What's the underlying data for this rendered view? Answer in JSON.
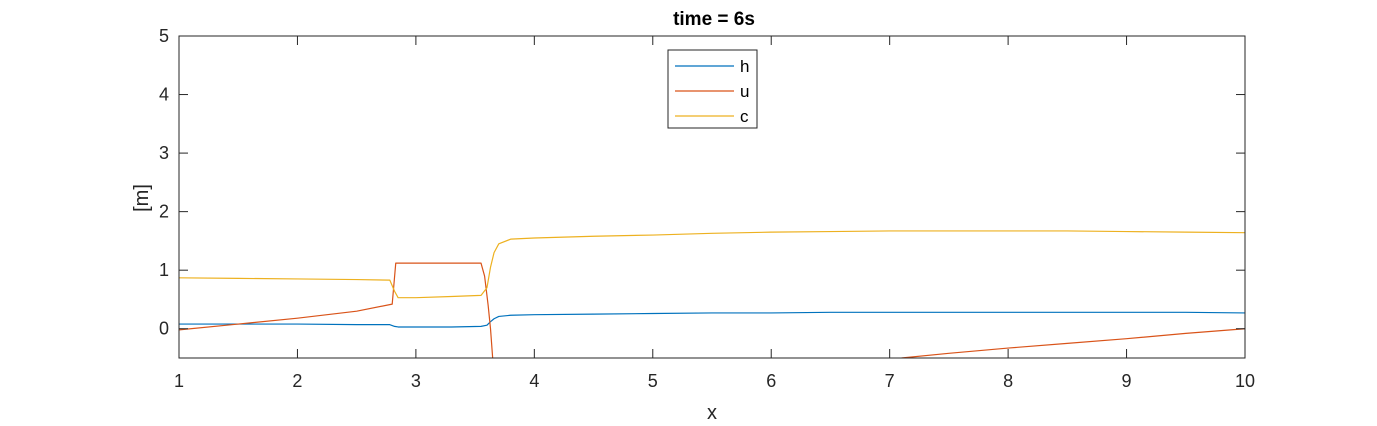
{
  "chart_data": {
    "type": "line",
    "title": "time = 6s",
    "xlabel": "x",
    "ylabel": "[m]",
    "xlim": [
      1,
      10
    ],
    "ylim": [
      -0.5,
      5
    ],
    "xticks": [
      1,
      2,
      3,
      4,
      5,
      6,
      7,
      8,
      9,
      10
    ],
    "yticks": [
      0,
      1,
      2,
      3,
      4,
      5
    ],
    "grid": false,
    "box": true,
    "legend_position": "top-center",
    "series": [
      {
        "name": "h",
        "color": "#0072BD",
        "x": [
          1.0,
          1.5,
          2.0,
          2.5,
          2.78,
          2.82,
          2.85,
          3.0,
          3.3,
          3.55,
          3.6,
          3.63,
          3.66,
          3.7,
          3.8,
          4.0,
          4.5,
          5.0,
          5.5,
          6.0,
          6.5,
          7.0,
          7.5,
          8.0,
          8.5,
          9.0,
          9.5,
          10.0
        ],
        "y": [
          0.08,
          0.08,
          0.08,
          0.07,
          0.07,
          0.04,
          0.03,
          0.03,
          0.03,
          0.04,
          0.06,
          0.12,
          0.17,
          0.21,
          0.23,
          0.24,
          0.25,
          0.26,
          0.27,
          0.27,
          0.28,
          0.28,
          0.28,
          0.28,
          0.28,
          0.28,
          0.28,
          0.27
        ]
      },
      {
        "name": "u",
        "color": "#D95319",
        "segments": [
          {
            "x": [
              1.0,
              1.5,
              2.0,
              2.5,
              2.8,
              2.83,
              3.0,
              3.3,
              3.55,
              3.58,
              3.61,
              3.63,
              3.65
            ],
            "y": [
              -0.02,
              0.08,
              0.18,
              0.3,
              0.42,
              1.12,
              1.12,
              1.12,
              1.12,
              0.9,
              0.4,
              0.0,
              -0.55
            ]
          },
          {
            "x": [
              7.1,
              7.5,
              8.0,
              8.5,
              9.0,
              9.5,
              10.0
            ],
            "y": [
              -0.5,
              -0.42,
              -0.33,
              -0.25,
              -0.17,
              -0.08,
              0.0
            ]
          }
        ]
      },
      {
        "name": "c",
        "color": "#EDB120",
        "x": [
          1.0,
          1.5,
          2.0,
          2.5,
          2.78,
          2.82,
          2.85,
          3.0,
          3.3,
          3.55,
          3.6,
          3.63,
          3.66,
          3.7,
          3.8,
          4.0,
          4.5,
          5.0,
          5.5,
          6.0,
          6.5,
          7.0,
          7.5,
          8.0,
          8.5,
          9.0,
          9.5,
          10.0
        ],
        "y": [
          0.87,
          0.86,
          0.85,
          0.84,
          0.83,
          0.64,
          0.53,
          0.53,
          0.55,
          0.57,
          0.7,
          1.05,
          1.3,
          1.45,
          1.53,
          1.55,
          1.58,
          1.6,
          1.63,
          1.65,
          1.66,
          1.67,
          1.67,
          1.67,
          1.67,
          1.66,
          1.65,
          1.64
        ]
      }
    ]
  }
}
